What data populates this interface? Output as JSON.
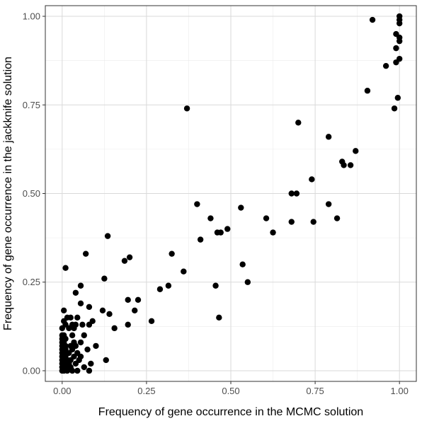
{
  "chart_data": {
    "type": "scatter",
    "title": "",
    "xlabel": "Frequency of gene occurrence in the MCMC solution",
    "ylabel": "Frequency of gene occurrence in the jackknife solution",
    "xlim": [
      -0.05,
      1.05
    ],
    "ylim": [
      -0.03,
      1.03
    ],
    "x_ticks": [
      0.0,
      0.25,
      0.5,
      0.75,
      1.0
    ],
    "y_ticks": [
      0.0,
      0.25,
      0.5,
      0.75,
      1.0
    ],
    "x_tick_labels": [
      "0.00",
      "0.25",
      "0.50",
      "0.75",
      "1.00"
    ],
    "y_tick_labels": [
      "0.00",
      "0.25",
      "0.50",
      "0.75",
      "1.00"
    ],
    "grid": true,
    "theme": "bw",
    "point_color": "#000000",
    "points": [
      {
        "x": 0.92,
        "y": 0.99
      },
      {
        "x": 1.0,
        "y": 1.0
      },
      {
        "x": 1.0,
        "y": 0.99
      },
      {
        "x": 1.0,
        "y": 0.98
      },
      {
        "x": 0.99,
        "y": 0.95
      },
      {
        "x": 1.0,
        "y": 0.94
      },
      {
        "x": 1.0,
        "y": 0.93
      },
      {
        "x": 0.99,
        "y": 0.91
      },
      {
        "x": 1.0,
        "y": 0.88
      },
      {
        "x": 0.99,
        "y": 0.87
      },
      {
        "x": 0.96,
        "y": 0.86
      },
      {
        "x": 0.905,
        "y": 0.79
      },
      {
        "x": 0.995,
        "y": 0.77
      },
      {
        "x": 0.985,
        "y": 0.74
      },
      {
        "x": 0.37,
        "y": 0.74
      },
      {
        "x": 0.7,
        "y": 0.7
      },
      {
        "x": 0.79,
        "y": 0.66
      },
      {
        "x": 0.87,
        "y": 0.62
      },
      {
        "x": 0.83,
        "y": 0.59
      },
      {
        "x": 0.835,
        "y": 0.58
      },
      {
        "x": 0.855,
        "y": 0.58
      },
      {
        "x": 0.74,
        "y": 0.54
      },
      {
        "x": 0.68,
        "y": 0.5
      },
      {
        "x": 0.695,
        "y": 0.5
      },
      {
        "x": 0.4,
        "y": 0.47
      },
      {
        "x": 0.79,
        "y": 0.47
      },
      {
        "x": 0.53,
        "y": 0.46
      },
      {
        "x": 0.44,
        "y": 0.43
      },
      {
        "x": 0.605,
        "y": 0.43
      },
      {
        "x": 0.815,
        "y": 0.43
      },
      {
        "x": 0.68,
        "y": 0.42
      },
      {
        "x": 0.745,
        "y": 0.42
      },
      {
        "x": 0.49,
        "y": 0.4
      },
      {
        "x": 0.46,
        "y": 0.39
      },
      {
        "x": 0.47,
        "y": 0.39
      },
      {
        "x": 0.625,
        "y": 0.39
      },
      {
        "x": 0.135,
        "y": 0.38
      },
      {
        "x": 0.41,
        "y": 0.37
      },
      {
        "x": 0.07,
        "y": 0.33
      },
      {
        "x": 0.325,
        "y": 0.33
      },
      {
        "x": 0.2,
        "y": 0.32
      },
      {
        "x": 0.185,
        "y": 0.31
      },
      {
        "x": 0.535,
        "y": 0.3
      },
      {
        "x": 0.01,
        "y": 0.29
      },
      {
        "x": 0.36,
        "y": 0.28
      },
      {
        "x": 0.125,
        "y": 0.26
      },
      {
        "x": 0.55,
        "y": 0.25
      },
      {
        "x": 0.055,
        "y": 0.24
      },
      {
        "x": 0.315,
        "y": 0.24
      },
      {
        "x": 0.455,
        "y": 0.24
      },
      {
        "x": 0.29,
        "y": 0.23
      },
      {
        "x": 0.04,
        "y": 0.22
      },
      {
        "x": 0.195,
        "y": 0.2
      },
      {
        "x": 0.225,
        "y": 0.2
      },
      {
        "x": 0.055,
        "y": 0.19
      },
      {
        "x": 0.08,
        "y": 0.18
      },
      {
        "x": 0.12,
        "y": 0.17
      },
      {
        "x": 0.215,
        "y": 0.17
      },
      {
        "x": 0.005,
        "y": 0.17
      },
      {
        "x": 0.14,
        "y": 0.16
      },
      {
        "x": 0.015,
        "y": 0.15
      },
      {
        "x": 0.025,
        "y": 0.15
      },
      {
        "x": 0.045,
        "y": 0.15
      },
      {
        "x": 0.465,
        "y": 0.15
      },
      {
        "x": 0.005,
        "y": 0.14
      },
      {
        "x": 0.09,
        "y": 0.14
      },
      {
        "x": 0.265,
        "y": 0.14
      },
      {
        "x": 0.01,
        "y": 0.13
      },
      {
        "x": 0.03,
        "y": 0.13
      },
      {
        "x": 0.04,
        "y": 0.13
      },
      {
        "x": 0.06,
        "y": 0.13
      },
      {
        "x": 0.08,
        "y": 0.13
      },
      {
        "x": 0.195,
        "y": 0.13
      },
      {
        "x": 0.0,
        "y": 0.12
      },
      {
        "x": 0.02,
        "y": 0.12
      },
      {
        "x": 0.035,
        "y": 0.12
      },
      {
        "x": 0.155,
        "y": 0.12
      },
      {
        "x": 0.0,
        "y": 0.1
      },
      {
        "x": 0.005,
        "y": 0.1
      },
      {
        "x": 0.03,
        "y": 0.1
      },
      {
        "x": 0.065,
        "y": 0.1
      },
      {
        "x": 0.0,
        "y": 0.09
      },
      {
        "x": 0.01,
        "y": 0.09
      },
      {
        "x": 0.0,
        "y": 0.08
      },
      {
        "x": 0.005,
        "y": 0.08
      },
      {
        "x": 0.035,
        "y": 0.08
      },
      {
        "x": 0.055,
        "y": 0.08
      },
      {
        "x": 0.0,
        "y": 0.07
      },
      {
        "x": 0.01,
        "y": 0.07
      },
      {
        "x": 0.025,
        "y": 0.07
      },
      {
        "x": 0.04,
        "y": 0.07
      },
      {
        "x": 0.1,
        "y": 0.07
      },
      {
        "x": 0.0,
        "y": 0.06
      },
      {
        "x": 0.01,
        "y": 0.06
      },
      {
        "x": 0.03,
        "y": 0.06
      },
      {
        "x": 0.075,
        "y": 0.06
      },
      {
        "x": 0.0,
        "y": 0.05
      },
      {
        "x": 0.005,
        "y": 0.05
      },
      {
        "x": 0.02,
        "y": 0.05
      },
      {
        "x": 0.045,
        "y": 0.05
      },
      {
        "x": 0.0,
        "y": 0.04
      },
      {
        "x": 0.01,
        "y": 0.04
      },
      {
        "x": 0.035,
        "y": 0.04
      },
      {
        "x": 0.055,
        "y": 0.04
      },
      {
        "x": 0.0,
        "y": 0.03
      },
      {
        "x": 0.015,
        "y": 0.03
      },
      {
        "x": 0.025,
        "y": 0.03
      },
      {
        "x": 0.05,
        "y": 0.03
      },
      {
        "x": 0.13,
        "y": 0.03
      },
      {
        "x": 0.0,
        "y": 0.02
      },
      {
        "x": 0.005,
        "y": 0.02
      },
      {
        "x": 0.02,
        "y": 0.02
      },
      {
        "x": 0.04,
        "y": 0.02
      },
      {
        "x": 0.085,
        "y": 0.02
      },
      {
        "x": 0.0,
        "y": 0.01
      },
      {
        "x": 0.01,
        "y": 0.01
      },
      {
        "x": 0.025,
        "y": 0.01
      },
      {
        "x": 0.065,
        "y": 0.01
      },
      {
        "x": 0.0,
        "y": 0.0
      },
      {
        "x": 0.005,
        "y": 0.0
      },
      {
        "x": 0.015,
        "y": 0.0
      },
      {
        "x": 0.03,
        "y": 0.0
      },
      {
        "x": 0.045,
        "y": 0.0
      },
      {
        "x": 0.08,
        "y": 0.0
      }
    ]
  }
}
